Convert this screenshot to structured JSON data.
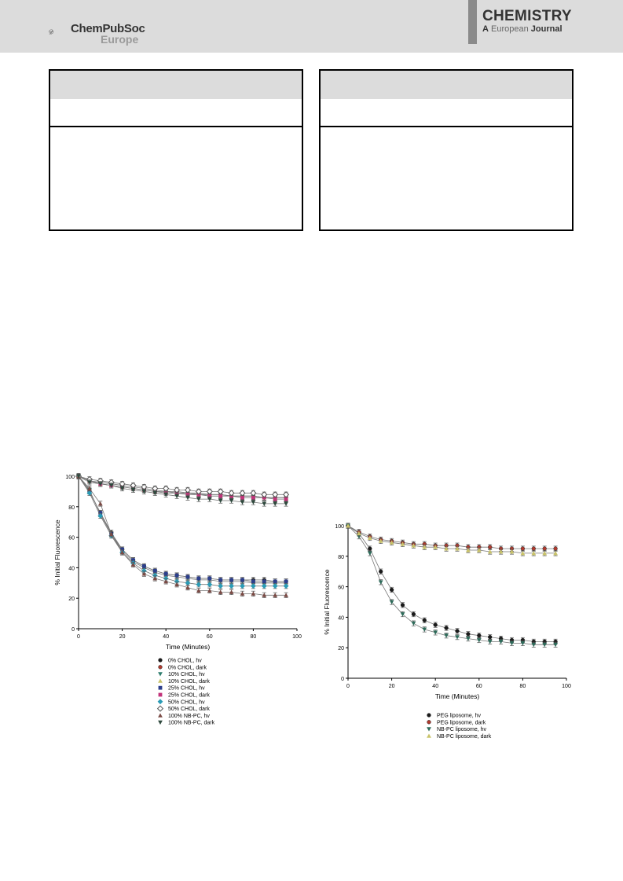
{
  "header": {
    "publisher": "ChemPubSoc",
    "publisher_sub": "Europe",
    "journal_main": "CHEMISTRY",
    "journal_a": "A",
    "journal_european": "European",
    "journal_word": "Journal"
  },
  "chart_data": [
    {
      "type": "scatter",
      "xlabel": "Time (Minutes)",
      "ylabel": "% Initial Fluorescence",
      "xlim": [
        0,
        100
      ],
      "ylim": [
        0,
        100
      ],
      "xticks": [
        0,
        20,
        40,
        60,
        80,
        100
      ],
      "yticks": [
        0,
        20,
        40,
        60,
        80,
        100
      ],
      "legend_position": "bottom",
      "series": [
        {
          "name": "0% CHOL, hv",
          "marker": "circle",
          "color": "#1a1a1a",
          "x": [
            0,
            5,
            10,
            15,
            20,
            25,
            30,
            35,
            40,
            45,
            50,
            55,
            60,
            65,
            70,
            75,
            80,
            85,
            90,
            95
          ],
          "y": [
            100,
            90,
            76,
            63,
            52,
            45,
            41,
            38,
            36,
            35,
            34,
            33,
            33,
            32,
            32,
            32,
            32,
            32,
            31,
            31
          ]
        },
        {
          "name": "0% CHOL, dark",
          "marker": "circle",
          "color": "#b03a2e",
          "x": [
            0,
            5,
            10,
            15,
            20,
            25,
            30,
            35,
            40,
            45,
            50,
            55,
            60,
            65,
            70,
            75,
            80,
            85,
            90,
            95
          ],
          "y": [
            100,
            97,
            96,
            95,
            94,
            93,
            92,
            91,
            90,
            90,
            89,
            89,
            88,
            88,
            87,
            87,
            87,
            86,
            86,
            86
          ]
        },
        {
          "name": "10% CHOL, hv",
          "marker": "triangle-down",
          "color": "#2e7d6e",
          "x": [
            0,
            5,
            10,
            15,
            20,
            25,
            30,
            35,
            40,
            45,
            50,
            55,
            60,
            65,
            70,
            75,
            80,
            85,
            90,
            95
          ],
          "y": [
            100,
            91,
            75,
            62,
            51,
            44,
            40,
            37,
            35,
            34,
            33,
            32,
            32,
            31,
            31,
            31,
            30,
            30,
            30,
            30
          ]
        },
        {
          "name": "10% CHOL, dark",
          "marker": "triangle-up",
          "color": "#c9c36a",
          "x": [
            0,
            5,
            10,
            15,
            20,
            25,
            30,
            35,
            40,
            45,
            50,
            55,
            60,
            65,
            70,
            75,
            80,
            85,
            90,
            95
          ],
          "y": [
            100,
            97,
            95,
            94,
            93,
            92,
            91,
            90,
            90,
            89,
            89,
            88,
            88,
            88,
            87,
            87,
            87,
            86,
            86,
            86
          ]
        },
        {
          "name": "25% CHOL, hv",
          "marker": "square",
          "color": "#2c3e8c",
          "x": [
            0,
            5,
            10,
            15,
            20,
            25,
            30,
            35,
            40,
            45,
            50,
            55,
            60,
            65,
            70,
            75,
            80,
            85,
            90,
            95
          ],
          "y": [
            100,
            90,
            76,
            62,
            52,
            45,
            41,
            38,
            36,
            35,
            34,
            33,
            33,
            32,
            32,
            32,
            31,
            31,
            31,
            31
          ]
        },
        {
          "name": "25% CHOL, dark",
          "marker": "square",
          "color": "#c2337a",
          "x": [
            0,
            5,
            10,
            15,
            20,
            25,
            30,
            35,
            40,
            45,
            50,
            55,
            60,
            65,
            70,
            75,
            80,
            85,
            90,
            95
          ],
          "y": [
            100,
            97,
            95,
            94,
            93,
            92,
            91,
            90,
            89,
            89,
            88,
            88,
            87,
            87,
            87,
            86,
            86,
            86,
            85,
            85
          ]
        },
        {
          "name": "50% CHOL, hv",
          "marker": "diamond",
          "color": "#2a9bb5",
          "x": [
            0,
            5,
            10,
            15,
            20,
            25,
            30,
            35,
            40,
            45,
            50,
            55,
            60,
            65,
            70,
            75,
            80,
            85,
            90,
            95
          ],
          "y": [
            100,
            89,
            74,
            61,
            50,
            43,
            38,
            35,
            33,
            31,
            30,
            29,
            29,
            28,
            28,
            28,
            28,
            28,
            28,
            28
          ]
        },
        {
          "name": "50% CHOL, dark",
          "marker": "diamond-open",
          "color": "#555555",
          "x": [
            0,
            5,
            10,
            15,
            20,
            25,
            30,
            35,
            40,
            45,
            50,
            55,
            60,
            65,
            70,
            75,
            80,
            85,
            90,
            95
          ],
          "y": [
            100,
            98,
            97,
            96,
            95,
            94,
            93,
            92,
            92,
            91,
            91,
            90,
            90,
            90,
            89,
            89,
            89,
            88,
            88,
            88
          ]
        },
        {
          "name": "100% NB-PC, hv",
          "marker": "triangle-up",
          "color": "#7a4a44",
          "x": [
            0,
            5,
            10,
            15,
            20,
            25,
            30,
            35,
            40,
            45,
            50,
            55,
            60,
            65,
            70,
            75,
            80,
            85,
            90,
            95
          ],
          "y": [
            100,
            92,
            82,
            62,
            50,
            42,
            36,
            33,
            31,
            29,
            27,
            25,
            25,
            24,
            24,
            23,
            23,
            22,
            22,
            22
          ]
        },
        {
          "name": "100% NB-PC, dark",
          "marker": "triangle-down",
          "color": "#2f4a3e",
          "x": [
            0,
            5,
            10,
            15,
            20,
            25,
            30,
            35,
            40,
            45,
            50,
            55,
            60,
            65,
            70,
            75,
            80,
            85,
            90,
            95
          ],
          "y": [
            100,
            96,
            95,
            94,
            92,
            91,
            90,
            89,
            88,
            87,
            86,
            85,
            85,
            84,
            84,
            83,
            83,
            82,
            82,
            82
          ]
        }
      ]
    },
    {
      "type": "scatter",
      "xlabel": "Time (Minutes)",
      "ylabel": "% Initial Fluorescence",
      "xlim": [
        0,
        100
      ],
      "ylim": [
        0,
        100
      ],
      "xticks": [
        0,
        20,
        40,
        60,
        80,
        100
      ],
      "yticks": [
        0,
        20,
        40,
        60,
        80,
        100
      ],
      "legend_position": "bottom",
      "series": [
        {
          "name": "PEG liposome, hv",
          "marker": "circle",
          "color": "#1a1a1a",
          "x": [
            0,
            5,
            10,
            15,
            20,
            25,
            30,
            35,
            40,
            45,
            50,
            55,
            60,
            65,
            70,
            75,
            80,
            85,
            90,
            95
          ],
          "y": [
            100,
            95,
            85,
            70,
            58,
            48,
            42,
            38,
            35,
            33,
            31,
            29,
            28,
            27,
            26,
            25,
            25,
            24,
            24,
            24
          ]
        },
        {
          "name": "PEG liposome, dark",
          "marker": "circle",
          "color": "#b03a2e",
          "x": [
            0,
            5,
            10,
            15,
            20,
            25,
            30,
            35,
            40,
            45,
            50,
            55,
            60,
            65,
            70,
            75,
            80,
            85,
            90,
            95
          ],
          "y": [
            100,
            96,
            93,
            91,
            90,
            89,
            88,
            88,
            87,
            87,
            87,
            86,
            86,
            86,
            85,
            85,
            85,
            85,
            85,
            85
          ]
        },
        {
          "name": "NB-PC liposome, hv",
          "marker": "triangle-down",
          "color": "#2e6b5a",
          "x": [
            0,
            5,
            10,
            15,
            20,
            25,
            30,
            35,
            40,
            45,
            50,
            55,
            60,
            65,
            70,
            75,
            80,
            85,
            90,
            95
          ],
          "y": [
            100,
            93,
            82,
            63,
            50,
            42,
            36,
            32,
            30,
            28,
            27,
            26,
            25,
            24,
            24,
            23,
            23,
            22,
            22,
            22
          ]
        },
        {
          "name": "NB-PC liposome, dark",
          "marker": "triangle-up",
          "color": "#c9c36a",
          "x": [
            0,
            5,
            10,
            15,
            20,
            25,
            30,
            35,
            40,
            45,
            50,
            55,
            60,
            65,
            70,
            75,
            80,
            85,
            90,
            95
          ],
          "y": [
            100,
            95,
            92,
            90,
            89,
            88,
            87,
            86,
            86,
            85,
            85,
            84,
            84,
            83,
            83,
            83,
            82,
            82,
            82,
            82
          ]
        }
      ]
    }
  ]
}
